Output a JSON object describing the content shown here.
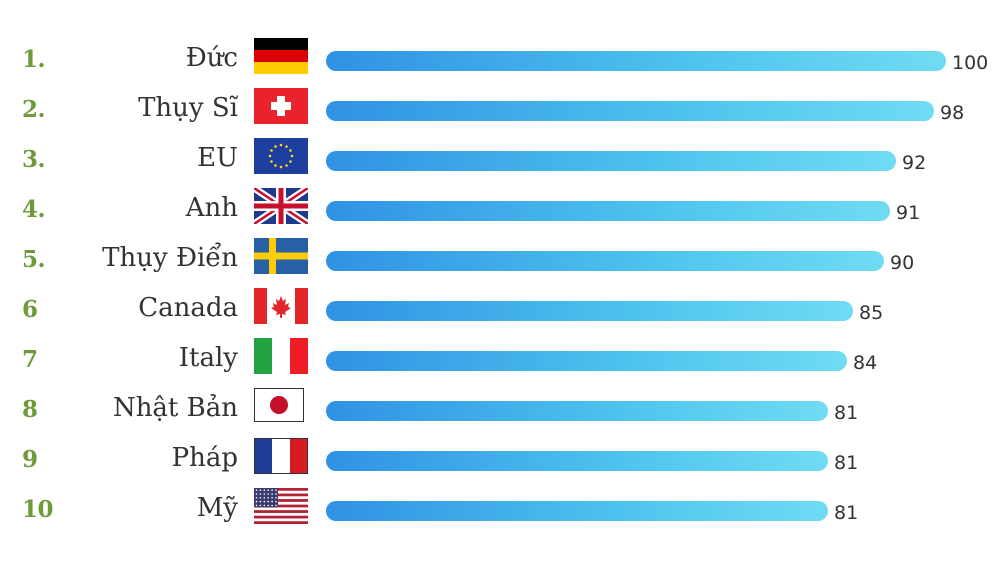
{
  "chart_data": {
    "type": "bar",
    "orientation": "horizontal",
    "title": "",
    "xlabel": "",
    "ylabel": "",
    "xlim": [
      0,
      100
    ],
    "rows": [
      {
        "rank": "1.",
        "country": "Đức",
        "value": 100,
        "flag": "germany-flag"
      },
      {
        "rank": "2.",
        "country": "Thụy Sĩ",
        "value": 98,
        "flag": "switzerland-flag"
      },
      {
        "rank": "3.",
        "country": "EU",
        "value": 92,
        "flag": "eu-flag"
      },
      {
        "rank": "4.",
        "country": "Anh",
        "value": 91,
        "flag": "uk-flag"
      },
      {
        "rank": "5.",
        "country": "Thụy Điển",
        "value": 90,
        "flag": "sweden-flag"
      },
      {
        "rank": "6",
        "country": "Canada",
        "value": 85,
        "flag": "canada-flag"
      },
      {
        "rank": "7",
        "country": "Italy",
        "value": 84,
        "flag": "italy-flag"
      },
      {
        "rank": "8",
        "country": "Nhật Bản",
        "value": 81,
        "flag": "japan-flag"
      },
      {
        "rank": "9",
        "country": "Pháp",
        "value": 81,
        "flag": "france-flag"
      },
      {
        "rank": "10",
        "country": "Mỹ",
        "value": 81,
        "flag": "usa-flag"
      }
    ]
  },
  "colors": {
    "rank": "#6f9a3a",
    "label": "#333333",
    "bar_start": "#2f92e4",
    "bar_end": "#6fdcf3"
  }
}
